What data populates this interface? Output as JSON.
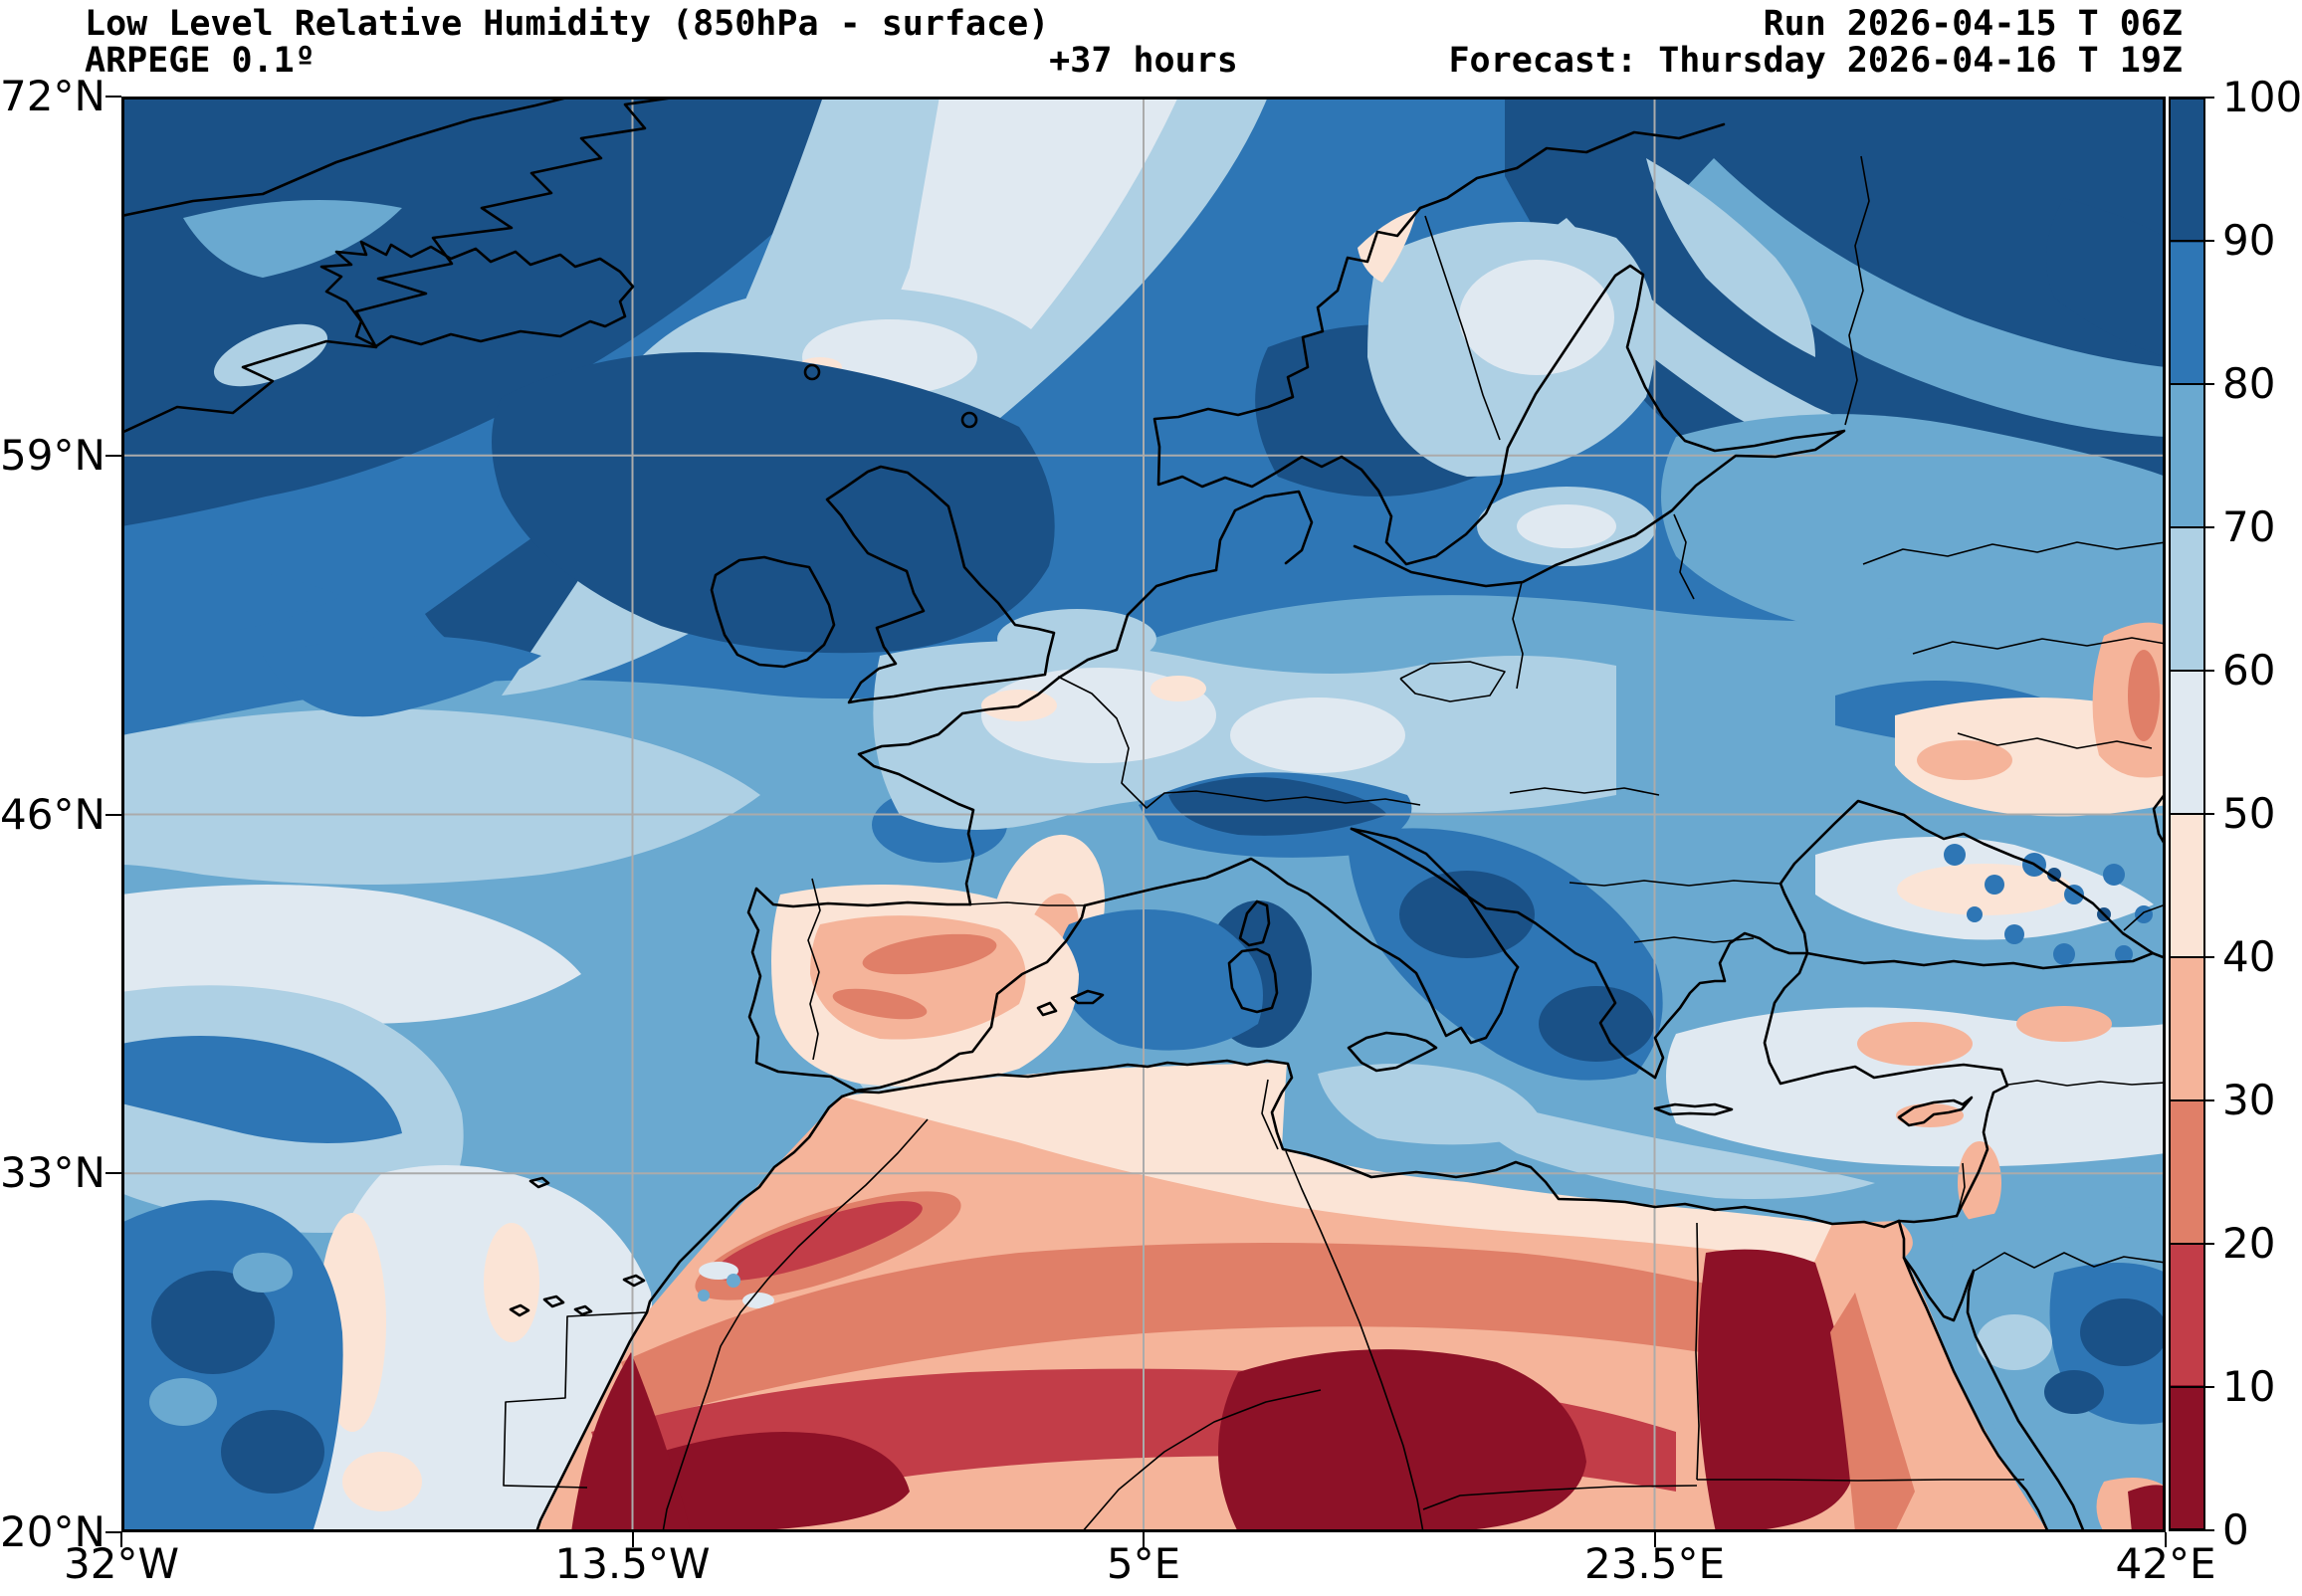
{
  "header": {
    "title": "Low Level Relative Humidity (850hPa - surface)",
    "model": "ARPEGE 0.1º",
    "lead_time": "+37 hours",
    "run": "Run 2026-04-15 T 06Z",
    "forecast": "Forecast: Thursday 2026-04-16 T 19Z"
  },
  "axes": {
    "lat_ticks": [
      "72°N",
      "59°N",
      "46°N",
      "33°N",
      "20°N"
    ],
    "lon_ticks": [
      "32°W",
      "13.5°W",
      "5°E",
      "23.5°E",
      "42°E"
    ]
  },
  "colorbar": {
    "tick_labels": [
      "100",
      "90",
      "80",
      "70",
      "60",
      "50",
      "40",
      "30",
      "20",
      "10",
      "0"
    ],
    "band_colors_top_to_bottom": [
      "#1a5187",
      "#2e76b5",
      "#6aa9d0",
      "#aed0e4",
      "#e0e9f1",
      "#fbe4d6",
      "#f5b49a",
      "#e07f68",
      "#c23d48",
      "#8d1127"
    ]
  },
  "map": {
    "grid_color": "#ababab",
    "coastline_color": "#000000",
    "background_color": "#ffffff"
  }
}
